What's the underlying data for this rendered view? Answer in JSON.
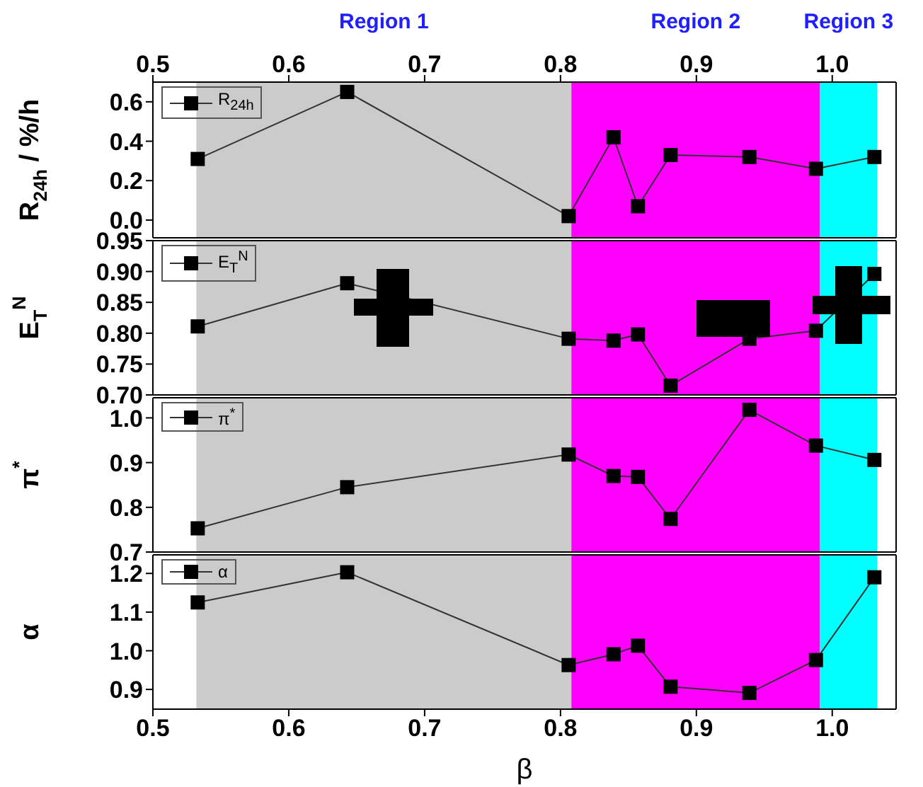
{
  "chart_data": [
    {
      "type": "line",
      "ylabel": "R$_{24h}$ / %/h",
      "x": [
        0.533,
        0.643,
        0.806,
        0.839,
        0.857,
        0.881,
        0.939,
        0.988,
        1.031
      ],
      "series": [
        {
          "name": "R$_{24h}$",
          "color": "#000000",
          "values": [
            0.31,
            0.65,
            0.02,
            0.42,
            0.07,
            0.33,
            0.32,
            0.26,
            0.32
          ]
        }
      ],
      "xlim": [
        0.5,
        1.047
      ],
      "xticks": [
        0.5,
        0.6,
        0.7,
        0.8,
        0.9,
        1
      ],
      "x2lim": [
        0.5,
        1.047
      ],
      "x2ticks": [
        0.5,
        0.6,
        0.7,
        0.8,
        0.9,
        {
          "value": 1,
          "label": "1.0"
        }
      ],
      "ylim": [
        -0.09,
        0.7
      ],
      "yticks": [
        {
          "value": 0,
          "label": "0.0"
        },
        0.2,
        0.4,
        0.6
      ],
      "tick_labels": "y",
      "marker": "square",
      "line_style": "solid",
      "legend": "top left",
      "grid": false,
      "bands": [
        {
          "axis": "x",
          "from": 0.532,
          "to": 0.808,
          "label": "Region 1",
          "color": "#cbcbcb"
        },
        {
          "axis": "x",
          "from": 0.808,
          "to": 0.991,
          "label": "Region 2",
          "color": "#ff00ff"
        },
        {
          "axis": "x",
          "from": 0.991,
          "to": 1.033,
          "label": "Region 3",
          "color": "#00ffff"
        }
      ]
    },
    {
      "type": "line",
      "ylabel": "E$_{T}$$^{N}$",
      "x": [
        0.533,
        0.643,
        0.806,
        0.839,
        0.857,
        0.881,
        0.939,
        0.988,
        1.031
      ],
      "series": [
        {
          "name": "E$_{T}$$^{N}$",
          "color": "#000000",
          "values": [
            0.811,
            0.881,
            0.791,
            0.788,
            0.798,
            0.715,
            0.791,
            0.804,
            0.896
          ]
        }
      ],
      "xlim": [
        0.5,
        1.047
      ],
      "xticks": [
        0.5,
        0.6,
        0.7,
        0.8,
        0.9,
        1
      ],
      "ylim": [
        0.7,
        0.95
      ],
      "yticks": [
        {
          "value": 0.7,
          "label": "0.70"
        },
        0.75,
        {
          "value": 0.8,
          "label": "0.80"
        },
        0.85,
        {
          "value": 0.9,
          "label": "0.90"
        },
        0.95
      ],
      "tick_labels": "y",
      "marker": "square",
      "line_style": "solid",
      "legend": "top left",
      "grid": false,
      "bands": [
        {
          "axis": "x",
          "from": 0.532,
          "to": 0.808,
          "color": "#cbcbcb"
        },
        {
          "axis": "x",
          "from": 0.808,
          "to": 0.991,
          "color": "#ff00ff"
        },
        {
          "axis": "x",
          "from": 0.991,
          "to": 1.033,
          "color": "#00ffff"
        }
      ]
    },
    {
      "type": "line",
      "ylabel": "π$^{*}$",
      "x": [
        0.533,
        0.643,
        0.806,
        0.839,
        0.857,
        0.881,
        0.939,
        0.988,
        1.031
      ],
      "series": [
        {
          "name": "π$^{*}$",
          "color": "#000000",
          "values": [
            0.753,
            0.845,
            0.918,
            0.87,
            0.868,
            0.774,
            1.018,
            0.938,
            0.906
          ]
        }
      ],
      "xlim": [
        0.5,
        1.047
      ],
      "xticks": [
        0.5,
        0.6,
        0.7,
        0.8,
        0.9,
        1
      ],
      "ylim": [
        0.7,
        1.045
      ],
      "yticks": [
        0.7,
        0.8,
        0.9,
        {
          "value": 1,
          "label": "1.0"
        }
      ],
      "tick_labels": "y",
      "marker": "square",
      "line_style": "solid",
      "legend": "top left",
      "grid": false,
      "bands": [
        {
          "axis": "x",
          "from": 0.532,
          "to": 0.808,
          "color": "#cbcbcb"
        },
        {
          "axis": "x",
          "from": 0.808,
          "to": 0.991,
          "color": "#ff00ff"
        },
        {
          "axis": "x",
          "from": 0.991,
          "to": 1.033,
          "color": "#00ffff"
        }
      ]
    },
    {
      "type": "line",
      "xlabel": "β",
      "ylabel": "α",
      "x": [
        0.533,
        0.643,
        0.806,
        0.839,
        0.857,
        0.881,
        0.939,
        0.988,
        1.031
      ],
      "series": [
        {
          "name": "α",
          "color": "#000000",
          "values": [
            1.125,
            1.203,
            0.963,
            0.991,
            1.013,
            0.907,
            0.891,
            0.976,
            1.19
          ]
        }
      ],
      "xlim": [
        0.5,
        1.047
      ],
      "xticks": [
        0.5,
        0.6,
        0.7,
        0.8,
        0.9,
        {
          "value": 1,
          "label": "1.0"
        }
      ],
      "ylim": [
        0.849,
        1.248
      ],
      "yticks": [
        0.9,
        {
          "value": 1,
          "label": "1.0"
        },
        1.1,
        1.2
      ],
      "marker": "square",
      "line_style": "solid",
      "legend": "top left",
      "grid": false,
      "bands": [
        {
          "axis": "x",
          "from": 0.532,
          "to": 0.808,
          "color": "#cbcbcb"
        },
        {
          "axis": "x",
          "from": 0.808,
          "to": 0.991,
          "color": "#ff00ff"
        },
        {
          "axis": "x",
          "from": 0.991,
          "to": 1.033,
          "color": "#00ffff"
        }
      ]
    }
  ]
}
